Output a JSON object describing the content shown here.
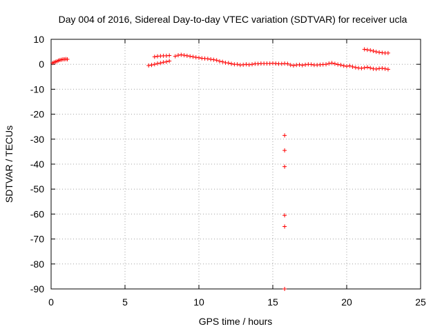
{
  "chart_data": {
    "type": "scatter",
    "title": "Day 004 of 2016, Sidereal Day-to-day VTEC variation (SDTVAR) for receiver ucla",
    "xlabel": "GPS time / hours",
    "ylabel": "SDTVAR / TECUs",
    "xlim": [
      0,
      25
    ],
    "ylim": [
      -90,
      10
    ],
    "xticks": [
      0,
      5,
      10,
      15,
      20,
      25
    ],
    "xtick_labels": [
      "0",
      "5",
      "10",
      "15",
      "20",
      "25"
    ],
    "yticks": [
      10,
      0,
      -10,
      -20,
      -30,
      -40,
      -50,
      -60,
      -70,
      -80,
      -90
    ],
    "ytick_labels": [
      "10",
      "0",
      "-10",
      "-20",
      "-30",
      "-40",
      "-50",
      "-60",
      "-70",
      "-80",
      "-90"
    ],
    "grid": true,
    "marker": "+",
    "color": "#ff0000",
    "series": [
      {
        "name": "SDTVAR",
        "x": [
          0.1,
          0.2,
          0.3,
          0.4,
          0.5,
          0.6,
          0.7,
          0.8,
          0.9,
          1.0,
          1.1,
          6.6,
          6.8,
          7.0,
          7.2,
          7.4,
          7.6,
          7.8,
          8.0,
          7.0,
          7.2,
          7.4,
          7.6,
          7.8,
          8.0,
          8.4,
          8.6,
          8.8,
          9.0,
          9.2,
          9.4,
          9.6,
          9.8,
          10.0,
          10.2,
          10.4,
          10.6,
          10.8,
          11.0,
          11.2,
          11.4,
          11.6,
          11.8,
          12.0,
          12.2,
          12.4,
          12.6,
          12.8,
          13.0,
          13.2,
          13.4,
          13.6,
          13.8,
          14.0,
          14.2,
          14.4,
          14.6,
          14.8,
          15.0,
          15.2,
          15.4,
          15.6,
          15.8,
          16.0,
          16.2,
          16.4,
          16.6,
          16.8,
          17.0,
          17.2,
          17.4,
          17.6,
          17.8,
          18.0,
          18.2,
          18.4,
          18.6,
          18.8,
          19.0,
          19.2,
          19.4,
          19.6,
          19.8,
          20.0,
          20.2,
          20.4,
          20.6,
          20.8,
          21.0,
          21.2,
          21.4,
          21.6,
          21.8,
          22.0,
          22.2,
          22.4,
          22.6,
          22.8,
          21.2,
          21.4,
          21.6,
          21.8,
          22.0,
          22.2,
          22.4,
          22.6,
          22.8,
          15.8,
          15.8,
          15.8,
          15.8,
          15.8,
          15.8
        ],
        "y": [
          0.5,
          0.8,
          1.0,
          1.2,
          1.5,
          1.7,
          1.8,
          2.0,
          2.0,
          2.1,
          2.0,
          -0.5,
          -0.3,
          0.0,
          0.3,
          0.5,
          0.8,
          1.0,
          1.3,
          3.0,
          3.2,
          3.3,
          3.4,
          3.4,
          3.5,
          3.2,
          3.6,
          3.8,
          3.6,
          3.4,
          3.2,
          3.0,
          2.8,
          2.6,
          2.4,
          2.3,
          2.2,
          2.0,
          1.8,
          1.6,
          1.2,
          1.0,
          0.6,
          0.5,
          0.2,
          0.0,
          0.0,
          -0.3,
          -0.2,
          0.0,
          -0.2,
          0.0,
          0.2,
          0.2,
          0.3,
          0.3,
          0.3,
          0.3,
          0.4,
          0.3,
          0.2,
          0.2,
          0.3,
          0.2,
          -0.3,
          -0.5,
          -0.3,
          -0.2,
          -0.4,
          -0.2,
          0.0,
          -0.1,
          -0.3,
          -0.3,
          -0.2,
          -0.1,
          0.0,
          0.3,
          0.5,
          0.2,
          -0.1,
          -0.3,
          -0.6,
          -0.8,
          -0.6,
          -1.0,
          -1.3,
          -1.5,
          -1.6,
          -1.4,
          -1.2,
          -1.5,
          -1.8,
          -1.9,
          -1.7,
          -1.6,
          -1.8,
          -2.0,
          6.0,
          5.8,
          5.6,
          5.3,
          5.0,
          4.8,
          4.6,
          4.5,
          4.5,
          -28.5,
          -34.5,
          -41.0,
          -60.5,
          -65.0,
          -90.0
        ]
      }
    ]
  }
}
